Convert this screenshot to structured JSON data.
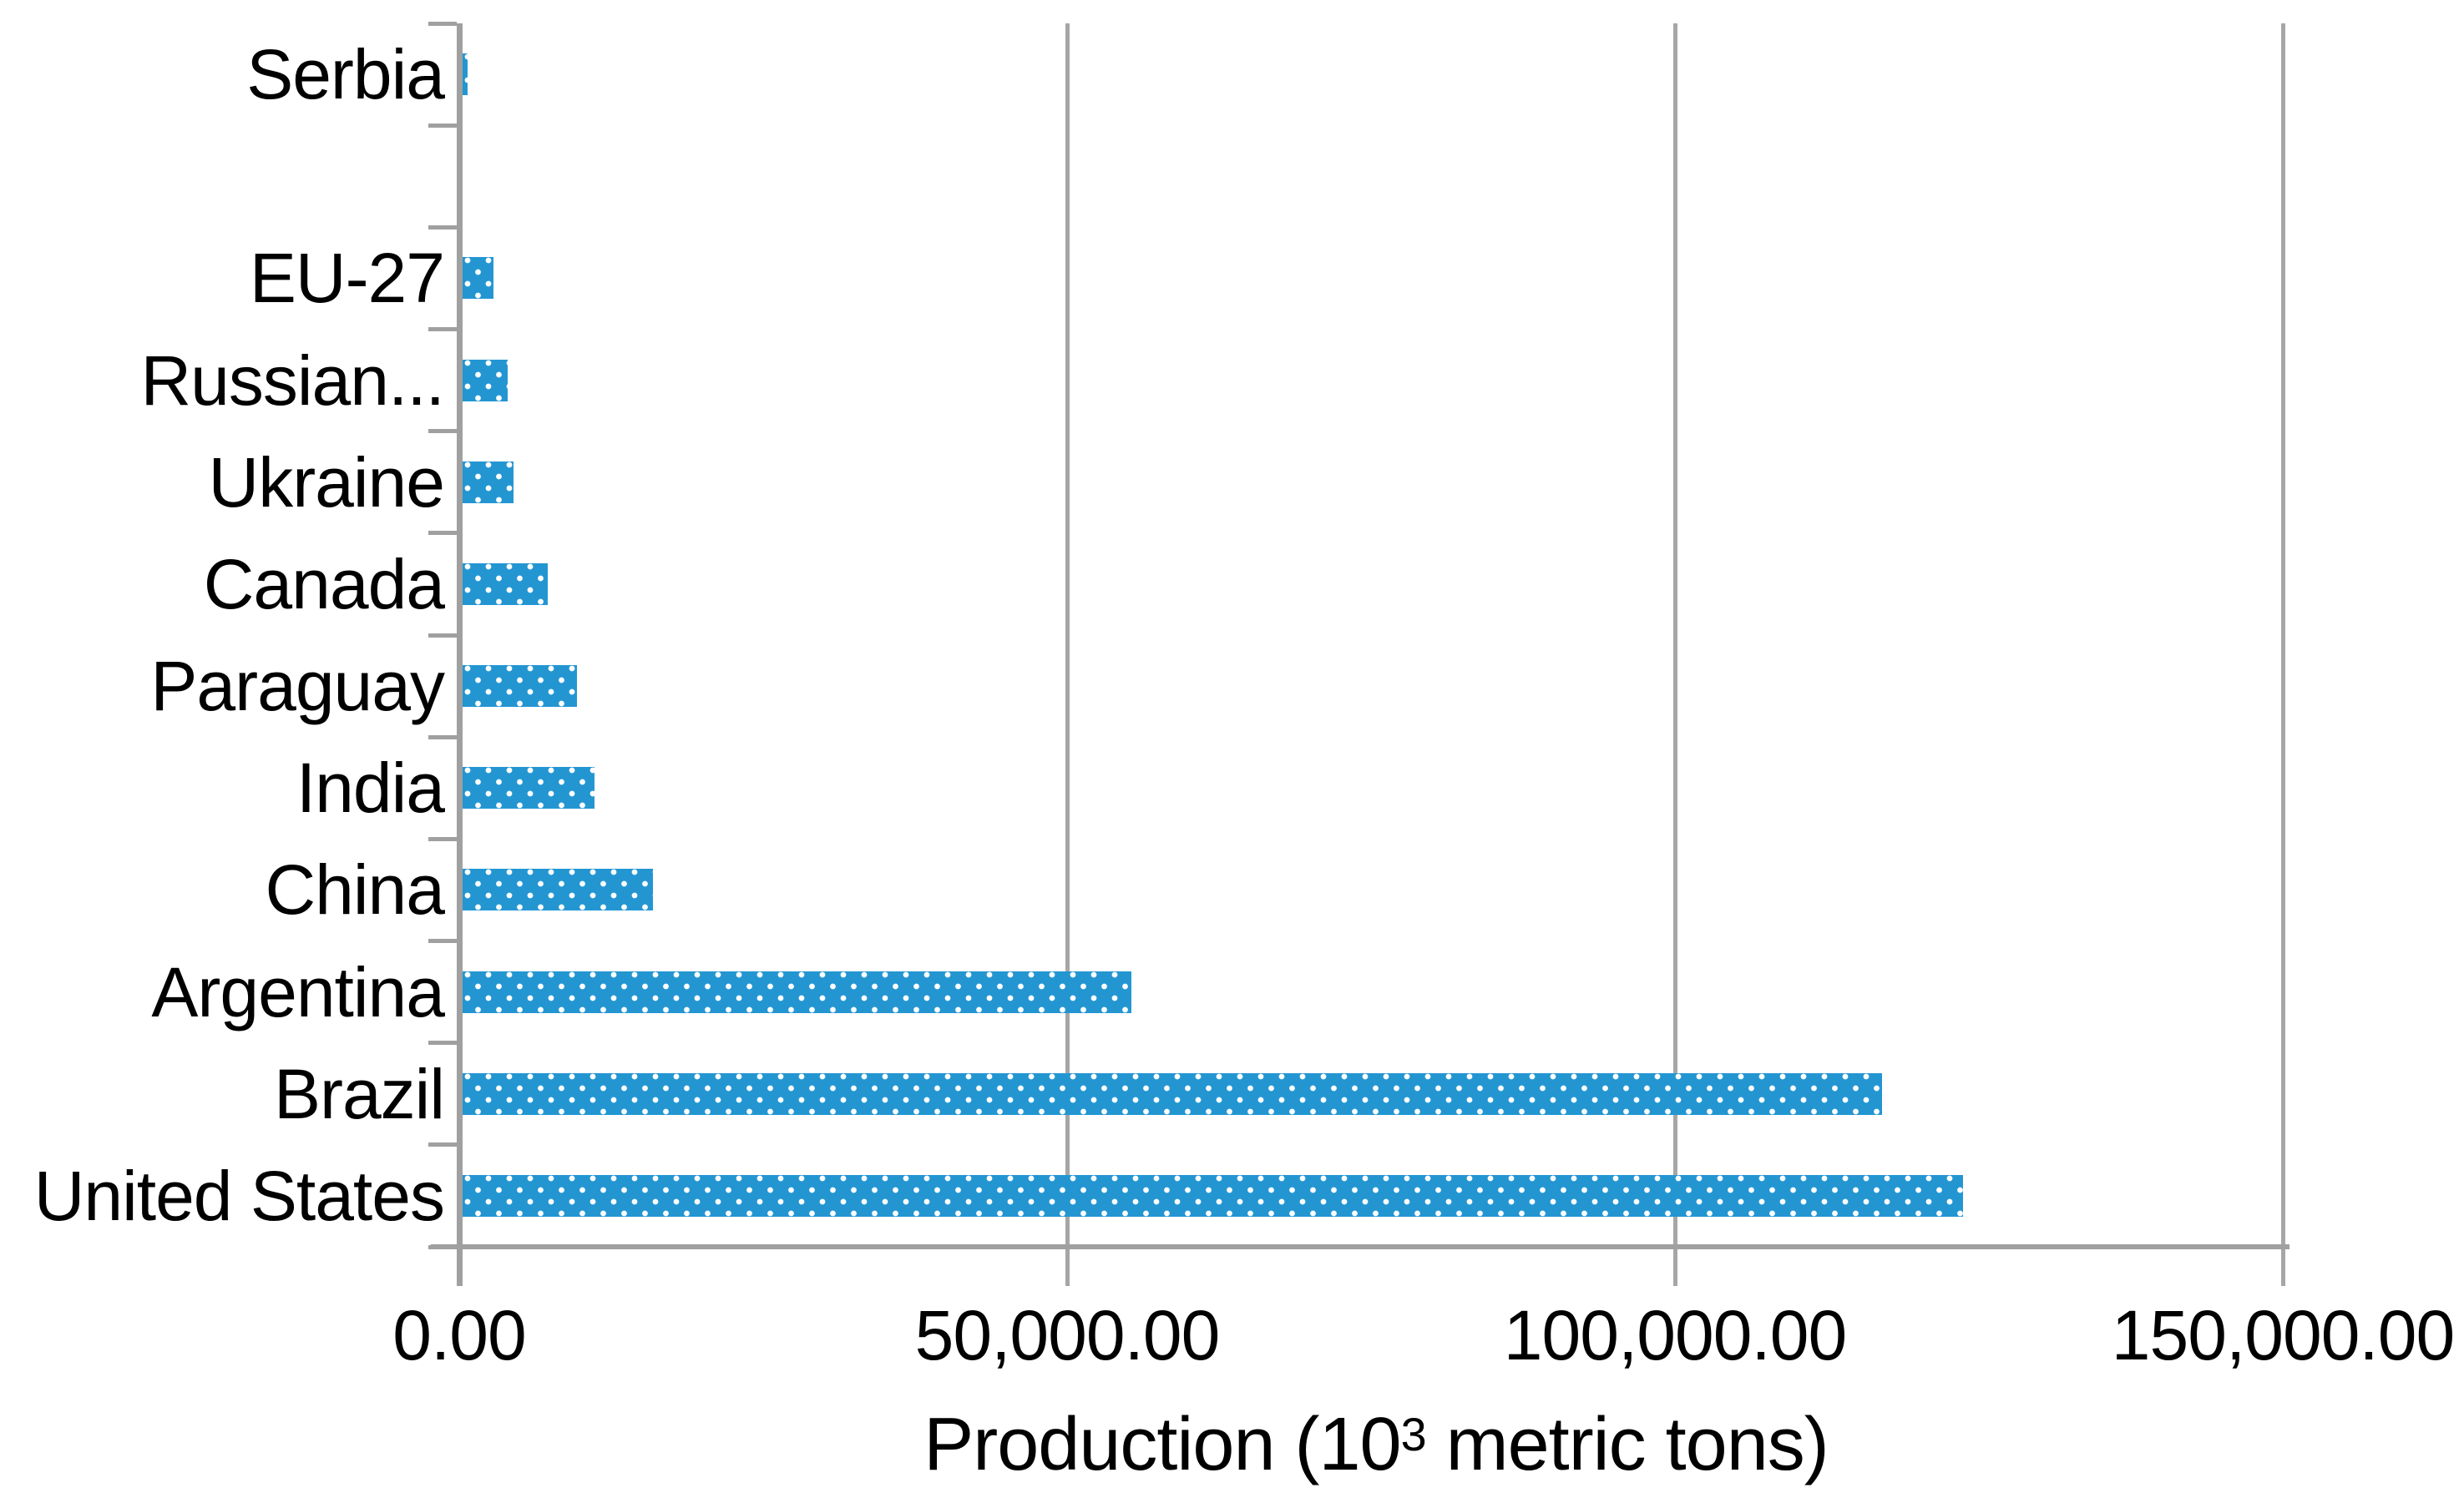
{
  "chart_data": {
    "type": "bar",
    "orientation": "horizontal",
    "title": "",
    "xlabel_prefix": "Production (10",
    "xlabel_sup": "3",
    "xlabel_suffix": " metric tons)",
    "ylabel": "",
    "categories": [
      "Serbia",
      "",
      "EU-27",
      "Russian...",
      "Ukraine",
      "Canada",
      "Paraguay",
      "India",
      "China",
      "Argentina",
      "Brazil",
      "United States"
    ],
    "values": [
      700,
      0,
      2830,
      4000,
      4460,
      7300,
      9700,
      11100,
      15900,
      55300,
      117000,
      123664
    ],
    "x_ticks": [
      {
        "value": 0,
        "label": "0.00"
      },
      {
        "value": 50000,
        "label": "50,000.00"
      },
      {
        "value": 100000,
        "label": "100,000.00"
      },
      {
        "value": 150000,
        "label": "150,000.00"
      }
    ],
    "xlim": [
      0,
      165000
    ],
    "grid": "vertical-gridlines-on",
    "legend": "none",
    "bar_pattern": "blue-with-white-dots",
    "colors": {
      "bar_fill": "#2396d2",
      "pattern_dot": "#ffffff",
      "axis_line": "#a0a0a0",
      "gridline": "#a6a6a6",
      "text": "#000000",
      "background": "#ffffff"
    }
  }
}
